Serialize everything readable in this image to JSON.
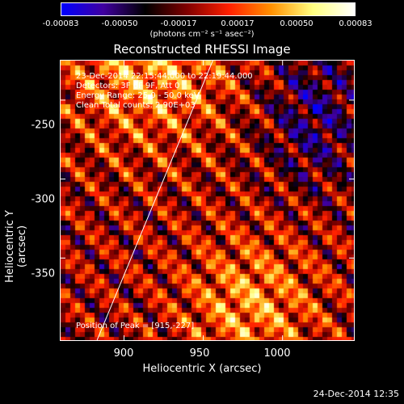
{
  "colorbar": {
    "ticks": [
      "-0.00083",
      "-0.00050",
      "-0.00017",
      "0.00017",
      "0.00050",
      "0.00083"
    ],
    "unit_label": "(photons cm⁻² s⁻¹ asec⁻²)",
    "range": [
      -0.00083,
      0.00083
    ],
    "stops": [
      "#0000ff",
      "#4000a0",
      "#000000",
      "#800000",
      "#ff2000",
      "#ff9000",
      "#ffff80",
      "#ffffff"
    ]
  },
  "info": {
    "line1": "23-Dec-2014 22:15:44.000 to 22:19:44.000",
    "line2": "Detectors: 3F 6F 9F, Att 0",
    "line3": "Energy Range: 25.0 - 50.0 keV",
    "line4": "Clean     Total counts: 2.90E+03",
    "peak": "Position of Peak = [915,-227]"
  },
  "footer": "24-Dec-2014 12:35",
  "chart_data": {
    "type": "heatmap",
    "title": "Reconstructed RHESSI Image",
    "xlabel": "Heliocentric X (arcsec)",
    "ylabel": "Heliocentric Y (arcsec)",
    "xlim": [
      860,
      1045
    ],
    "ylim": [
      -402,
      -225
    ],
    "xticks": [
      "900",
      "950",
      "1000"
    ],
    "yticks": [
      "-250",
      "-300",
      "-350"
    ],
    "peak": [
      915,
      -227
    ],
    "limb_line": {
      "x": [
        883,
        956
      ],
      "y": [
        -402,
        -225
      ]
    }
  }
}
